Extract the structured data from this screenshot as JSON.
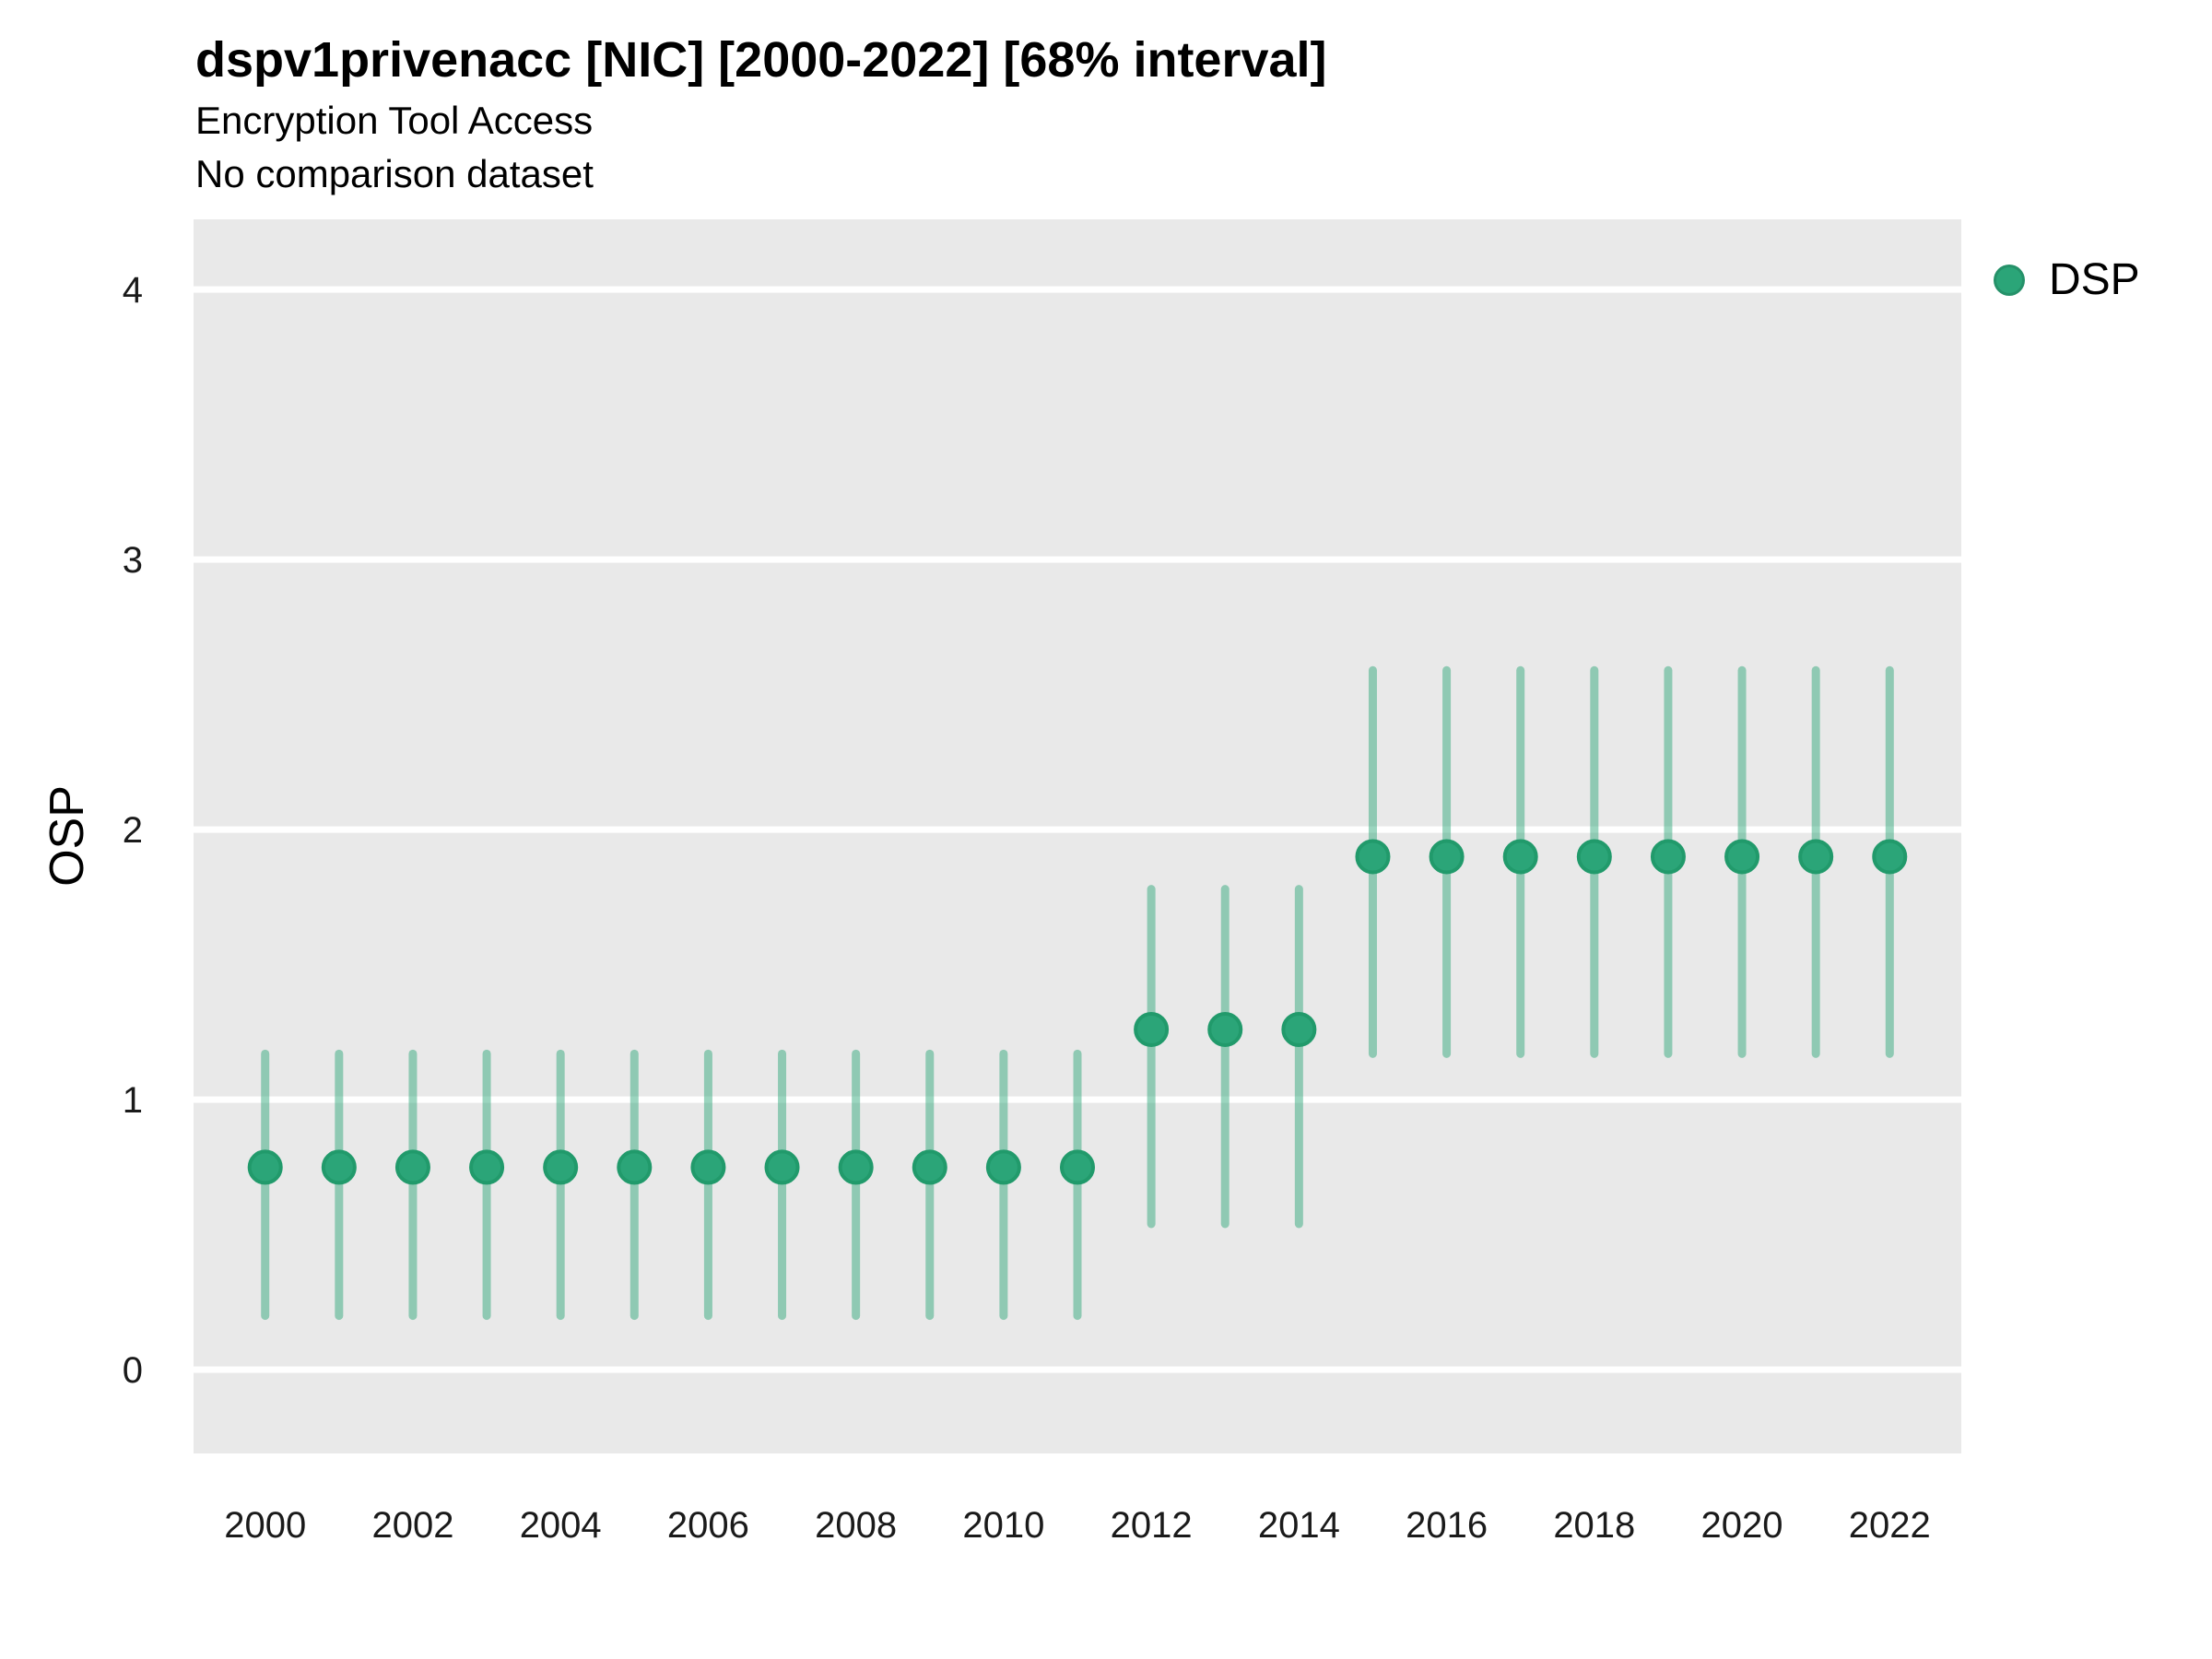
{
  "header": {
    "title": "dspv1privenacc [NIC] [2000-2022] [68% interval]",
    "subtitle1": "Encryption Tool Access",
    "subtitle2": "No comparison dataset"
  },
  "legend": {
    "items": [
      {
        "label": "DSP",
        "color": "#2ba578"
      }
    ]
  },
  "chart_data": {
    "type": "scatter",
    "title": "dspv1privenacc [NIC] [2000-2022] [68% interval]",
    "subtitle": "Encryption Tool Access",
    "note": "No comparison dataset",
    "xlabel": "",
    "ylabel": "OSP",
    "interval_label": "68% interval",
    "x": [
      2000,
      2001,
      2002,
      2003,
      2004,
      2005,
      2006,
      2007,
      2008,
      2009,
      2010,
      2011,
      2012,
      2013,
      2014,
      2015,
      2016,
      2017,
      2018,
      2019,
      2020,
      2021,
      2022
    ],
    "series": [
      {
        "name": "DSP",
        "mid": [
          0.75,
          0.75,
          0.75,
          0.75,
          0.75,
          0.75,
          0.75,
          0.75,
          0.75,
          0.75,
          0.75,
          0.75,
          1.26,
          1.26,
          1.26,
          1.9,
          1.9,
          1.9,
          1.9,
          1.9,
          1.9,
          1.9,
          1.9
        ],
        "lo": [
          0.2,
          0.2,
          0.2,
          0.2,
          0.2,
          0.2,
          0.2,
          0.2,
          0.2,
          0.2,
          0.2,
          0.2,
          0.54,
          0.54,
          0.54,
          1.17,
          1.17,
          1.17,
          1.17,
          1.17,
          1.17,
          1.17,
          1.17
        ],
        "hi": [
          1.17,
          1.17,
          1.17,
          1.17,
          1.17,
          1.17,
          1.17,
          1.17,
          1.17,
          1.17,
          1.17,
          1.17,
          1.78,
          1.78,
          1.78,
          2.59,
          2.59,
          2.59,
          2.59,
          2.59,
          2.59,
          2.59,
          2.59
        ]
      }
    ],
    "x_ticks": [
      2000,
      2002,
      2004,
      2006,
      2008,
      2010,
      2012,
      2014,
      2016,
      2018,
      2020,
      2022
    ],
    "y_ticks": [
      0,
      1,
      2,
      3,
      4
    ],
    "x_range": [
      1999.03,
      2022.97
    ],
    "y_range": [
      -0.31,
      4.26
    ],
    "grid": "horizontal-major-only",
    "legend_position": "top-right",
    "colors": {
      "point": "#2ba578",
      "point_stroke": "#219a6b",
      "interval": "rgba(43,165,120,0.47)",
      "panel_bg": "#e9e9e9",
      "grid_line": "#ffffff",
      "tick_text": "#1a1a1a"
    }
  }
}
